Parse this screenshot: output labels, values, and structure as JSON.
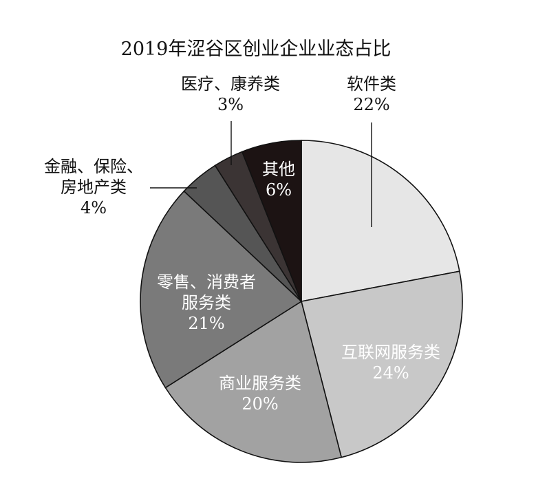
{
  "chart_data": {
    "type": "pie",
    "title": "2019年涩谷区创业企业业态占比",
    "slices": [
      {
        "name": "软件类",
        "value": 22,
        "value_label": "22%",
        "color": "#e6e6e6"
      },
      {
        "name": "互联网服务类",
        "value": 24,
        "value_label": "24%",
        "color": "#c8c8c8"
      },
      {
        "name": "商业服务类",
        "value": 20,
        "value_label": "20%",
        "color": "#a2a2a2"
      },
      {
        "name": "零售、消费者服务类",
        "value": 21,
        "value_label": "21%",
        "color": "#7a7a7a"
      },
      {
        "name": "金融、保险、房地产类",
        "value": 4,
        "value_label": "4%",
        "color": "#555555"
      },
      {
        "name": "医疗、康养类",
        "value": 3,
        "value_label": "3%",
        "color": "#3b3434"
      },
      {
        "name": "其他",
        "value": 6,
        "value_label": "6%",
        "color": "#1c1313"
      }
    ],
    "label_lines": {
      "软件类": [
        "软件类"
      ],
      "互联网服务类": [
        "互联网服务类"
      ],
      "商业服务类": [
        "商业服务类"
      ],
      "零售、消费者服务类": [
        "零售、消费者",
        "服务类"
      ],
      "金融、保险、房地产类": [
        "金融、保险、",
        "房地产类"
      ],
      "医疗、康养类": [
        "医疗、康养类"
      ],
      "其他": [
        "其他"
      ]
    },
    "start_angle": "12 o'clock",
    "direction": "clockwise",
    "legend": "none"
  }
}
